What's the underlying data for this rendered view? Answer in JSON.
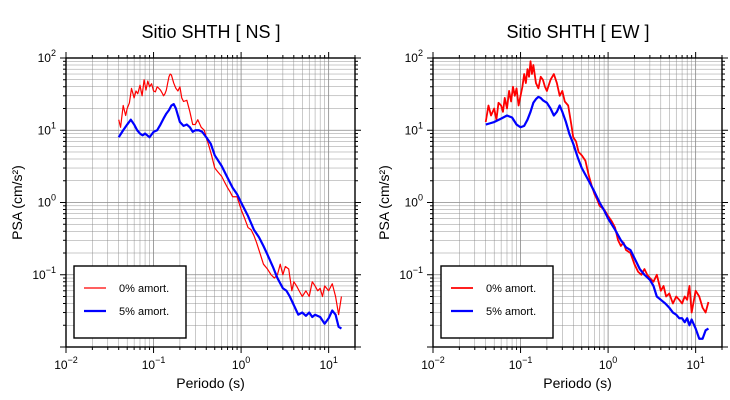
{
  "chart_data": [
    {
      "type": "line",
      "title": "Sitio SHTH [ NS ]",
      "xlabel": "Periodo (s)",
      "ylabel": "PSA (cm/s²)",
      "xscale": "log",
      "yscale": "log",
      "xlim": [
        0.01,
        20
      ],
      "ylim": [
        0.01,
        100
      ],
      "xticks": [
        {
          "label": "10⁻²",
          "base": "10",
          "exp": "−2",
          "value": 0.01
        },
        {
          "label": "10⁻¹",
          "base": "10",
          "exp": "−1",
          "value": 0.1
        },
        {
          "label": "10⁰",
          "base": "10",
          "exp": "0",
          "value": 1
        },
        {
          "label": "10¹",
          "base": "10",
          "exp": "1",
          "value": 10
        }
      ],
      "yticks": [
        {
          "label": "10⁻¹",
          "base": "10",
          "exp": "−1",
          "value": 0.1
        },
        {
          "label": "10⁰",
          "base": "10",
          "exp": "0",
          "value": 1
        },
        {
          "label": "10¹",
          "base": "10",
          "exp": "1",
          "value": 10
        },
        {
          "label": "10²",
          "base": "10",
          "exp": "2",
          "value": 100
        }
      ],
      "grid": true,
      "legend_position": "bottom-left",
      "series": [
        {
          "name": "0% amort.",
          "color": "#ff0000",
          "linewidth": "thin",
          "x": [
            0.04,
            0.042,
            0.045,
            0.048,
            0.05,
            0.053,
            0.056,
            0.06,
            0.063,
            0.066,
            0.07,
            0.074,
            0.078,
            0.082,
            0.086,
            0.09,
            0.095,
            0.1,
            0.105,
            0.11,
            0.115,
            0.12,
            0.125,
            0.13,
            0.135,
            0.14,
            0.145,
            0.15,
            0.155,
            0.16,
            0.17,
            0.18,
            0.19,
            0.2,
            0.21,
            0.22,
            0.24,
            0.26,
            0.28,
            0.3,
            0.32,
            0.35,
            0.38,
            0.4,
            0.43,
            0.46,
            0.5,
            0.55,
            0.6,
            0.65,
            0.7,
            0.75,
            0.8,
            0.9,
            1.0,
            1.1,
            1.2,
            1.3,
            1.4,
            1.5,
            1.6,
            1.8,
            2.0,
            2.2,
            2.4,
            2.6,
            2.8,
            3.0,
            3.2,
            3.5,
            3.8,
            4.0,
            4.3,
            4.6,
            5.0,
            5.5,
            6.0,
            6.5,
            7.0,
            7.5,
            8.0,
            8.5,
            9.0,
            10.0,
            11.0,
            12.0,
            13.0,
            14.0
          ],
          "y": [
            14,
            11,
            22,
            16,
            20,
            24,
            38,
            28,
            35,
            32,
            42,
            30,
            50,
            36,
            48,
            40,
            44,
            35,
            34,
            40,
            38,
            36,
            33,
            30,
            32,
            36,
            45,
            55,
            60,
            58,
            45,
            38,
            35,
            40,
            28,
            25,
            26,
            18,
            12,
            12,
            14,
            11,
            10,
            8,
            6,
            4.5,
            3.0,
            2.6,
            2.3,
            1.9,
            1.6,
            1.4,
            1.2,
            1.2,
            0.8,
            0.6,
            0.45,
            0.42,
            0.35,
            0.28,
            0.22,
            0.14,
            0.12,
            0.1,
            0.09,
            0.1,
            0.14,
            0.1,
            0.13,
            0.12,
            0.06,
            0.08,
            0.07,
            0.06,
            0.05,
            0.06,
            0.05,
            0.08,
            0.07,
            0.06,
            0.065,
            0.05,
            0.07,
            0.06,
            0.075,
            0.05,
            0.028,
            0.05
          ]
        },
        {
          "name": "5% amort.",
          "color": "#0000ff",
          "linewidth": "thick",
          "x": [
            0.04,
            0.045,
            0.05,
            0.055,
            0.06,
            0.065,
            0.07,
            0.075,
            0.08,
            0.09,
            0.1,
            0.11,
            0.12,
            0.13,
            0.14,
            0.15,
            0.16,
            0.17,
            0.18,
            0.19,
            0.2,
            0.22,
            0.24,
            0.26,
            0.28,
            0.3,
            0.33,
            0.36,
            0.4,
            0.45,
            0.5,
            0.6,
            0.7,
            0.8,
            0.9,
            1.0,
            1.2,
            1.4,
            1.6,
            1.8,
            2.0,
            2.3,
            2.6,
            3.0,
            3.3,
            3.6,
            4.0,
            4.5,
            5.0,
            5.5,
            6.0,
            6.5,
            7.0,
            8.0,
            9.0,
            10.0,
            11.0,
            12.0,
            13.0,
            14.0
          ],
          "y": [
            8,
            10,
            12,
            14,
            12,
            10,
            9,
            8.5,
            9,
            8,
            9.5,
            10,
            12,
            14.5,
            17,
            19,
            22,
            23,
            20,
            16,
            13,
            11.5,
            12,
            11,
            9.5,
            10,
            10,
            9.5,
            8,
            6.5,
            4.5,
            3.2,
            2.2,
            1.6,
            1.3,
            1.0,
            0.65,
            0.42,
            0.33,
            0.25,
            0.19,
            0.13,
            0.09,
            0.065,
            0.06,
            0.05,
            0.038,
            0.028,
            0.03,
            0.027,
            0.03,
            0.026,
            0.028,
            0.026,
            0.021,
            0.025,
            0.032,
            0.028,
            0.019,
            0.018
          ]
        }
      ]
    },
    {
      "type": "line",
      "title": "Sitio SHTH [ EW ]",
      "xlabel": "Periodo (s)",
      "ylabel": "PSA (cm/s²)",
      "xscale": "log",
      "yscale": "log",
      "xlim": [
        0.01,
        20
      ],
      "ylim": [
        0.01,
        100
      ],
      "xticks": [
        {
          "label": "10⁻²",
          "base": "10",
          "exp": "−2",
          "value": 0.01
        },
        {
          "label": "10⁻¹",
          "base": "10",
          "exp": "−1",
          "value": 0.1
        },
        {
          "label": "10⁰",
          "base": "10",
          "exp": "0",
          "value": 1
        },
        {
          "label": "10¹",
          "base": "10",
          "exp": "1",
          "value": 10
        }
      ],
      "yticks": [
        {
          "label": "10⁻¹",
          "base": "10",
          "exp": "−1",
          "value": 0.1
        },
        {
          "label": "10⁰",
          "base": "10",
          "exp": "0",
          "value": 1
        },
        {
          "label": "10¹",
          "base": "10",
          "exp": "1",
          "value": 10
        },
        {
          "label": "10²",
          "base": "10",
          "exp": "2",
          "value": 100
        }
      ],
      "grid": true,
      "legend_position": "bottom-left",
      "series": [
        {
          "name": "0% amort.",
          "color": "#ff0000",
          "linewidth": "medium",
          "x": [
            0.04,
            0.043,
            0.046,
            0.05,
            0.053,
            0.056,
            0.06,
            0.063,
            0.066,
            0.07,
            0.074,
            0.078,
            0.082,
            0.086,
            0.09,
            0.095,
            0.1,
            0.105,
            0.11,
            0.115,
            0.12,
            0.125,
            0.13,
            0.135,
            0.14,
            0.15,
            0.16,
            0.17,
            0.18,
            0.19,
            0.2,
            0.22,
            0.24,
            0.26,
            0.28,
            0.3,
            0.32,
            0.35,
            0.38,
            0.4,
            0.43,
            0.46,
            0.5,
            0.55,
            0.6,
            0.65,
            0.7,
            0.75,
            0.8,
            0.9,
            1.0,
            1.1,
            1.2,
            1.3,
            1.4,
            1.5,
            1.6,
            1.8,
            2.0,
            2.2,
            2.4,
            2.6,
            2.8,
            3.0,
            3.3,
            3.6,
            4.0,
            4.3,
            4.6,
            5.0,
            5.5,
            6.0,
            6.5,
            7.0,
            7.5,
            8.0,
            8.5,
            9.0,
            10.0,
            11.0,
            12.0,
            13.0,
            14.0
          ],
          "y": [
            13,
            22,
            16,
            20,
            14,
            24,
            22,
            18,
            28,
            20,
            35,
            25,
            40,
            30,
            38,
            22,
            30,
            40,
            60,
            45,
            70,
            55,
            90,
            60,
            80,
            45,
            38,
            55,
            50,
            40,
            35,
            50,
            60,
            45,
            30,
            35,
            25,
            22,
            12,
            8,
            7,
            5,
            4.5,
            3.8,
            2.4,
            1.7,
            1.3,
            1.1,
            0.9,
            0.8,
            0.65,
            0.55,
            0.45,
            0.3,
            0.25,
            0.28,
            0.22,
            0.2,
            0.14,
            0.11,
            0.1,
            0.12,
            0.1,
            0.09,
            0.08,
            0.1,
            0.06,
            0.07,
            0.05,
            0.055,
            0.04,
            0.05,
            0.045,
            0.04,
            0.05,
            0.045,
            0.07,
            0.03,
            0.06,
            0.05,
            0.035,
            0.03,
            0.042
          ]
        },
        {
          "name": "5% amort.",
          "color": "#0000ff",
          "linewidth": "thick",
          "x": [
            0.04,
            0.045,
            0.05,
            0.06,
            0.07,
            0.08,
            0.09,
            0.1,
            0.11,
            0.12,
            0.13,
            0.14,
            0.15,
            0.16,
            0.17,
            0.18,
            0.2,
            0.22,
            0.24,
            0.26,
            0.28,
            0.3,
            0.33,
            0.36,
            0.4,
            0.45,
            0.5,
            0.6,
            0.7,
            0.8,
            0.9,
            1.0,
            1.2,
            1.4,
            1.6,
            1.8,
            2.0,
            2.3,
            2.6,
            3.0,
            3.3,
            3.6,
            4.0,
            4.5,
            5.0,
            5.5,
            6.0,
            6.5,
            7.0,
            7.5,
            8.0,
            8.5,
            9.0,
            10.0,
            11.0,
            12.0,
            13.0,
            14.0
          ],
          "y": [
            12,
            12.5,
            13,
            14.5,
            16,
            15,
            12,
            11,
            11.5,
            14,
            18,
            24,
            27,
            29,
            28,
            26,
            24,
            20,
            16,
            18,
            22,
            18,
            13,
            9,
            6.5,
            4.2,
            3.0,
            2.0,
            1.4,
            1.0,
            0.78,
            0.6,
            0.42,
            0.3,
            0.24,
            0.22,
            0.17,
            0.12,
            0.1,
            0.085,
            0.07,
            0.05,
            0.045,
            0.04,
            0.035,
            0.03,
            0.028,
            0.025,
            0.025,
            0.022,
            0.025,
            0.02,
            0.024,
            0.018,
            0.013,
            0.013,
            0.017,
            0.018
          ]
        }
      ]
    }
  ]
}
